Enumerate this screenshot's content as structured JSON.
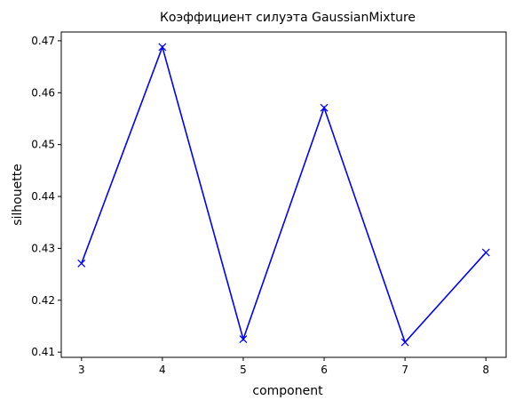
{
  "chart_data": {
    "type": "line",
    "title": "Коэффициент силуэта GaussianMixture",
    "xlabel": "component",
    "ylabel": "silhouette",
    "x": [
      3,
      4,
      5,
      6,
      7,
      8
    ],
    "series": [
      {
        "values": [
          0.4271,
          0.4688,
          0.4125,
          0.4571,
          0.4119,
          0.4292
        ],
        "color": "#0000ff",
        "marker": "x"
      }
    ],
    "xlim": [
      2.75,
      8.25
    ],
    "ylim": [
      0.409,
      0.4717
    ],
    "xticks": [
      3,
      4,
      5,
      6,
      7,
      8
    ],
    "xtick_labels": [
      "3",
      "4",
      "5",
      "6",
      "7",
      "8"
    ],
    "yticks": [
      0.41,
      0.42,
      0.43,
      0.44,
      0.45,
      0.46,
      0.47
    ],
    "ytick_labels": [
      "0.41",
      "0.42",
      "0.43",
      "0.44",
      "0.45",
      "0.46",
      "0.47"
    ],
    "grid": false,
    "legend": "none"
  }
}
